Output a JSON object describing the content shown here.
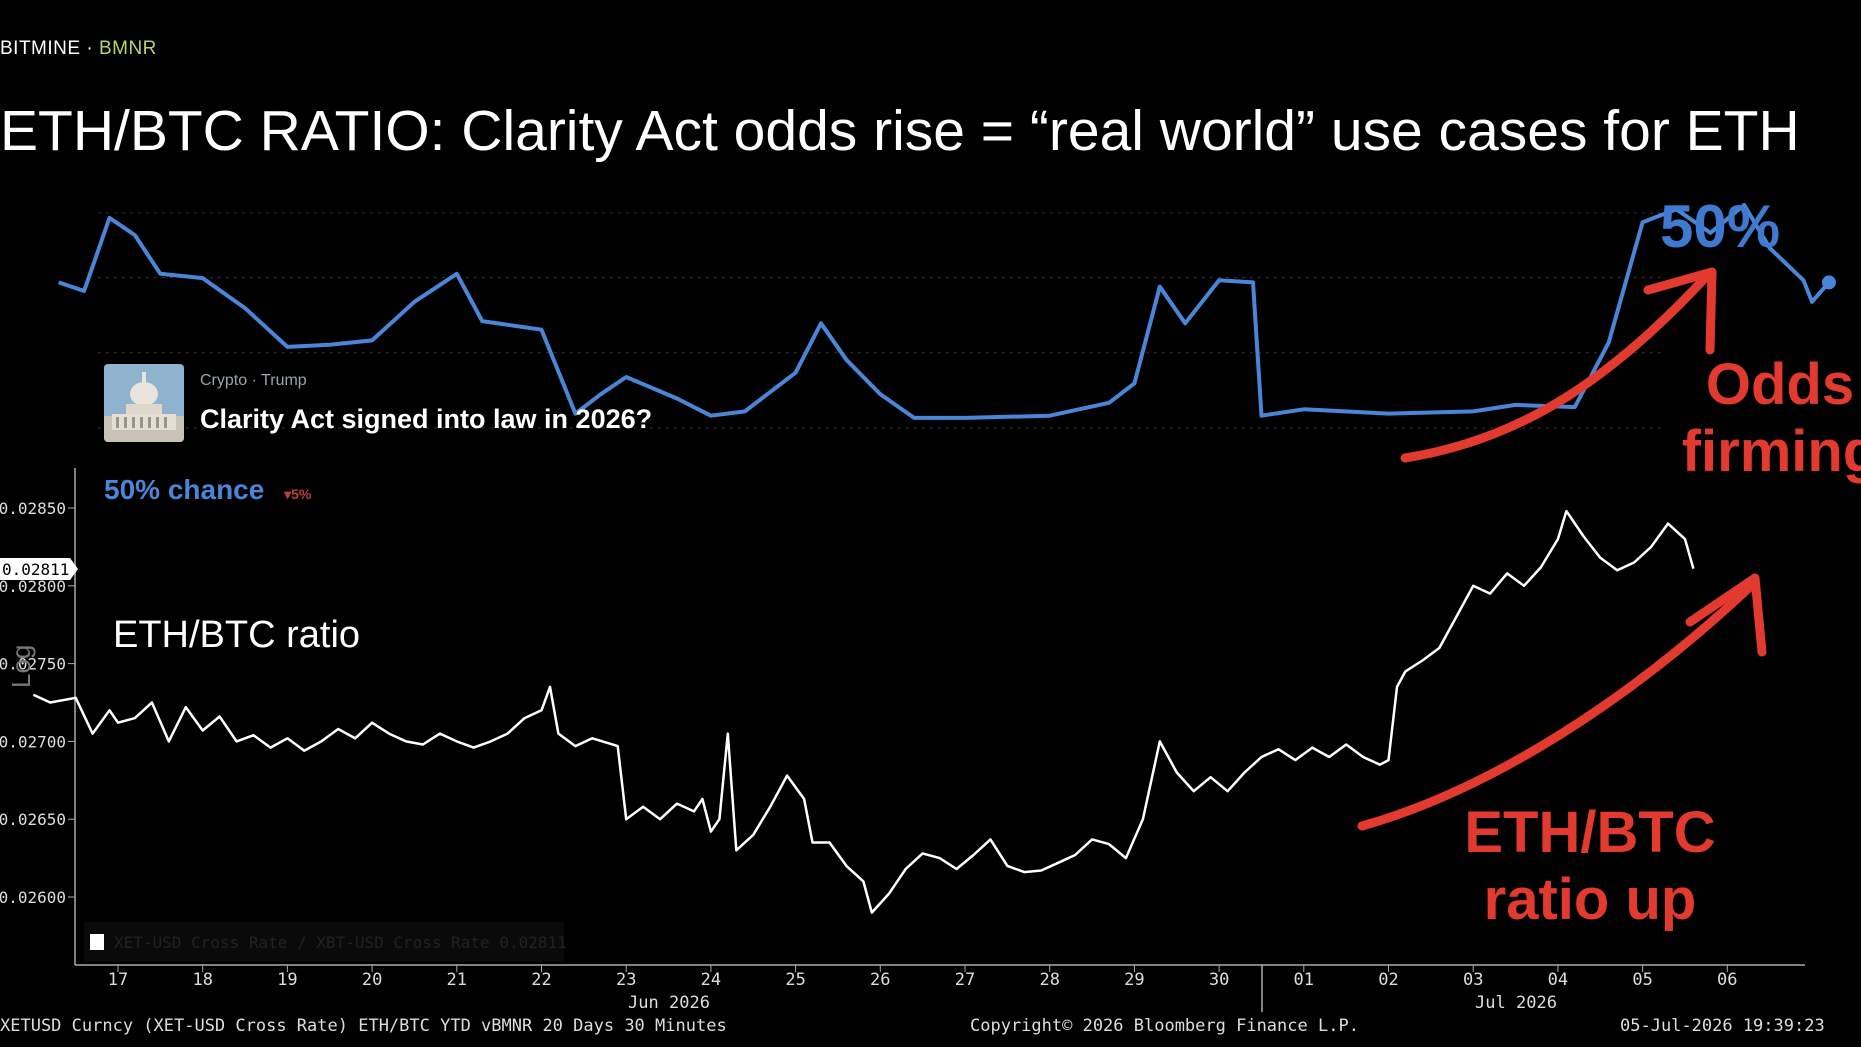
{
  "header": {
    "brand": "BITMINE",
    "separator": "·",
    "ticker": "BMNR",
    "title": "ETH/BTC RATIO: Clarity Act odds rise = “real world” use cases for ETH"
  },
  "prediction_market": {
    "category": "Crypto · Trump",
    "question": "Clarity Act signed into law in 2026?",
    "chance_label": "50% chance",
    "change_label": "▾5%",
    "icon": "capitol-building-icon"
  },
  "annotations": {
    "odds_value": "50%",
    "odds_note": "Odds firming",
    "ratio_note": "ETH/BTC ratio up",
    "ratio_label": "ETH/BTC ratio",
    "scale_tag": "Log",
    "legend_text": "XET-USD Cross Rate / XBT-USD Cross Rate 0.02811"
  },
  "footer": {
    "source": "XETUSD Curncy (XET-USD Cross Rate) ETH/BTC YTD vBMNR 20 Days 30 Minutes",
    "copyright": "Copyright© 2026 Bloomberg Finance L.P.",
    "timestamp": "05-Jul-2026 19:39:23"
  },
  "colors": {
    "odds_line": "#4a86d8",
    "ratio_line": "#ffffff",
    "annotation_red": "#e23a2f",
    "background": "#000000"
  },
  "chart_data": [
    {
      "type": "line",
      "name": "odds",
      "ylim": [
        0,
        1
      ],
      "points": [
        [
          16.3,
          0.64
        ],
        [
          16.6,
          0.6
        ],
        [
          16.9,
          0.94
        ],
        [
          17.2,
          0.86
        ],
        [
          17.5,
          0.68
        ],
        [
          18.0,
          0.66
        ],
        [
          18.5,
          0.52
        ],
        [
          19.0,
          0.34
        ],
        [
          19.5,
          0.35
        ],
        [
          20.0,
          0.37
        ],
        [
          20.5,
          0.55
        ],
        [
          21.0,
          0.68
        ],
        [
          21.3,
          0.46
        ],
        [
          22.0,
          0.42
        ],
        [
          22.4,
          0.03
        ],
        [
          22.7,
          0.12
        ],
        [
          23.0,
          0.2
        ],
        [
          23.6,
          0.1
        ],
        [
          24.0,
          0.02
        ],
        [
          24.4,
          0.04
        ],
        [
          25.0,
          0.22
        ],
        [
          25.3,
          0.45
        ],
        [
          25.6,
          0.28
        ],
        [
          26.0,
          0.12
        ],
        [
          26.4,
          0.01
        ],
        [
          27.0,
          0.01
        ],
        [
          28.0,
          0.02
        ],
        [
          28.7,
          0.08
        ],
        [
          29.0,
          0.17
        ],
        [
          29.3,
          0.62
        ],
        [
          29.6,
          0.45
        ],
        [
          30.0,
          0.65
        ],
        [
          30.4,
          0.64
        ],
        [
          30.5,
          0.02
        ],
        [
          31.0,
          0.05
        ],
        [
          32.0,
          0.03
        ],
        [
          33.0,
          0.04
        ],
        [
          33.5,
          0.07
        ],
        [
          34.2,
          0.06
        ],
        [
          34.6,
          0.36
        ],
        [
          35.0,
          0.92
        ],
        [
          35.4,
          0.98
        ],
        [
          35.8,
          0.87
        ],
        [
          36.2,
          1.0
        ],
        [
          36.5,
          0.8
        ],
        [
          36.9,
          0.65
        ],
        [
          37.0,
          0.55
        ],
        [
          37.2,
          0.64
        ]
      ]
    },
    {
      "type": "line",
      "name": "ETH/BTC ratio",
      "x_ticks": [
        "17",
        "18",
        "19",
        "20",
        "21",
        "22",
        "23",
        "24",
        "25",
        "26",
        "27",
        "28",
        "29",
        "30",
        "01",
        "02",
        "03",
        "04",
        "05",
        "06"
      ],
      "x_month_labels": [
        "Jun 2026",
        "Jul 2026"
      ],
      "y_ticks": [
        "0.02850",
        "0.02800",
        "0.02750",
        "0.02700",
        "0.02650",
        "0.02600"
      ],
      "current_value_label": "0.02811",
      "ylim": [
        0.0257,
        0.0288
      ],
      "points": [
        [
          16.0,
          0.0273
        ],
        [
          16.2,
          0.02725
        ],
        [
          16.5,
          0.02728
        ],
        [
          16.7,
          0.02705
        ],
        [
          16.9,
          0.0272
        ],
        [
          17.0,
          0.02712
        ],
        [
          17.2,
          0.02715
        ],
        [
          17.4,
          0.02725
        ],
        [
          17.6,
          0.027
        ],
        [
          17.8,
          0.02722
        ],
        [
          18.0,
          0.02707
        ],
        [
          18.2,
          0.02716
        ],
        [
          18.4,
          0.027
        ],
        [
          18.6,
          0.02704
        ],
        [
          18.8,
          0.02696
        ],
        [
          19.0,
          0.02702
        ],
        [
          19.2,
          0.02694
        ],
        [
          19.4,
          0.027
        ],
        [
          19.6,
          0.02708
        ],
        [
          19.8,
          0.02702
        ],
        [
          20.0,
          0.02712
        ],
        [
          20.2,
          0.02705
        ],
        [
          20.4,
          0.027
        ],
        [
          20.6,
          0.02698
        ],
        [
          20.8,
          0.02705
        ],
        [
          21.0,
          0.027
        ],
        [
          21.2,
          0.02696
        ],
        [
          21.4,
          0.027
        ],
        [
          21.6,
          0.02705
        ],
        [
          21.8,
          0.02715
        ],
        [
          22.0,
          0.0272
        ],
        [
          22.1,
          0.02735
        ],
        [
          22.2,
          0.02705
        ],
        [
          22.4,
          0.02697
        ],
        [
          22.6,
          0.02702
        ],
        [
          22.9,
          0.02697
        ],
        [
          23.0,
          0.0265
        ],
        [
          23.2,
          0.02658
        ],
        [
          23.4,
          0.0265
        ],
        [
          23.6,
          0.0266
        ],
        [
          23.8,
          0.02655
        ],
        [
          23.9,
          0.02663
        ],
        [
          24.0,
          0.02642
        ],
        [
          24.1,
          0.0265
        ],
        [
          24.2,
          0.02705
        ],
        [
          24.3,
          0.0263
        ],
        [
          24.5,
          0.0264
        ],
        [
          24.7,
          0.02658
        ],
        [
          24.9,
          0.02678
        ],
        [
          25.1,
          0.02663
        ],
        [
          25.2,
          0.02635
        ],
        [
          25.4,
          0.02635
        ],
        [
          25.6,
          0.0262
        ],
        [
          25.8,
          0.0261
        ],
        [
          25.9,
          0.0259
        ],
        [
          26.1,
          0.02602
        ],
        [
          26.3,
          0.02618
        ],
        [
          26.5,
          0.02628
        ],
        [
          26.7,
          0.02625
        ],
        [
          26.9,
          0.02618
        ],
        [
          27.1,
          0.02627
        ],
        [
          27.3,
          0.02637
        ],
        [
          27.5,
          0.0262
        ],
        [
          27.7,
          0.02616
        ],
        [
          27.9,
          0.02617
        ],
        [
          28.1,
          0.02622
        ],
        [
          28.3,
          0.02627
        ],
        [
          28.5,
          0.02637
        ],
        [
          28.7,
          0.02634
        ],
        [
          28.9,
          0.02625
        ],
        [
          29.1,
          0.0265
        ],
        [
          29.3,
          0.027
        ],
        [
          29.5,
          0.0268
        ],
        [
          29.7,
          0.02668
        ],
        [
          29.9,
          0.02677
        ],
        [
          30.1,
          0.02668
        ],
        [
          30.3,
          0.0268
        ],
        [
          30.5,
          0.0269
        ],
        [
          30.7,
          0.02695
        ],
        [
          30.9,
          0.02688
        ],
        [
          31.1,
          0.02696
        ],
        [
          31.3,
          0.0269
        ],
        [
          31.5,
          0.02698
        ],
        [
          31.7,
          0.0269
        ],
        [
          31.9,
          0.02685
        ],
        [
          32.0,
          0.02688
        ],
        [
          32.1,
          0.02735
        ],
        [
          32.2,
          0.02745
        ],
        [
          32.4,
          0.02752
        ],
        [
          32.6,
          0.0276
        ],
        [
          32.8,
          0.0278
        ],
        [
          33.0,
          0.028
        ],
        [
          33.2,
          0.02795
        ],
        [
          33.4,
          0.02808
        ],
        [
          33.6,
          0.028
        ],
        [
          33.8,
          0.02812
        ],
        [
          34.0,
          0.0283
        ],
        [
          34.1,
          0.02848
        ],
        [
          34.3,
          0.02832
        ],
        [
          34.5,
          0.02818
        ],
        [
          34.7,
          0.0281
        ],
        [
          34.9,
          0.02815
        ],
        [
          35.1,
          0.02825
        ],
        [
          35.3,
          0.0284
        ],
        [
          35.5,
          0.0283
        ],
        [
          35.6,
          0.02811
        ]
      ]
    }
  ]
}
